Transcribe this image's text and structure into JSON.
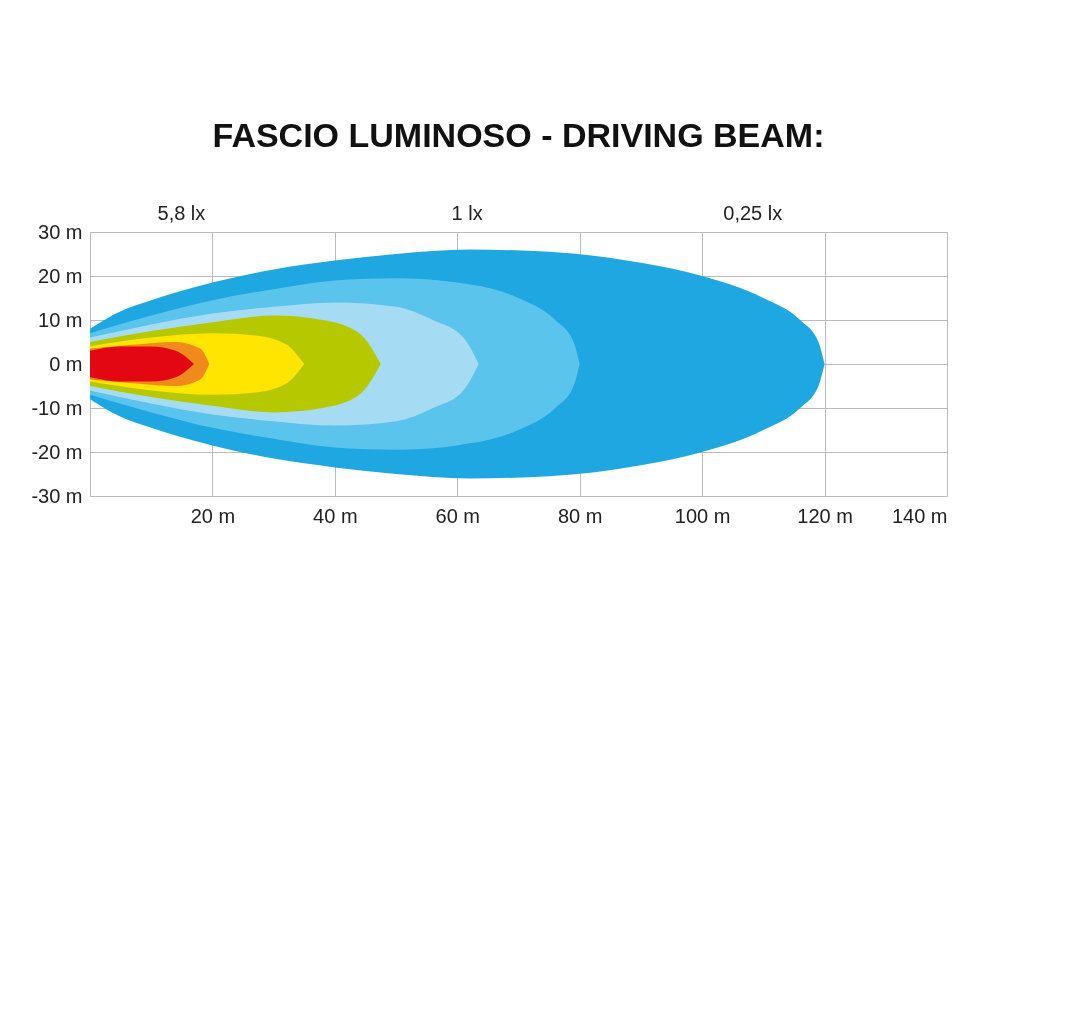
{
  "chart_data": {
    "type": "area",
    "title": "FASCIO LUMINOSO - DRIVING BEAM:",
    "xlim": [
      0,
      140
    ],
    "ylim": [
      -30,
      30
    ],
    "xticks": [
      {
        "value": 0,
        "label": null
      },
      {
        "value": 20,
        "label": "20 m"
      },
      {
        "value": 40,
        "label": "40 m"
      },
      {
        "value": 60,
        "label": "60 m"
      },
      {
        "value": 80,
        "label": "80 m"
      },
      {
        "value": 100,
        "label": "100 m"
      },
      {
        "value": 120,
        "label": "120 m"
      },
      {
        "value": 140,
        "label": "140 m"
      }
    ],
    "yticks": [
      {
        "value": -30,
        "label": "-30 m"
      },
      {
        "value": -20,
        "label": "-20 m"
      },
      {
        "value": -10,
        "label": "-10 m"
      },
      {
        "value": 0,
        "label": "0  m"
      },
      {
        "value": 10,
        "label": "10  m"
      },
      {
        "value": 20,
        "label": "20  m"
      },
      {
        "value": 30,
        "label": "30  m"
      }
    ],
    "grid": true,
    "annotations": [
      "5,8 lx",
      "1 lx",
      "0,25 lx"
    ],
    "series": [
      {
        "color": "#1ea7e0",
        "x": [
          0,
          5,
          10,
          20,
          30,
          40,
          50,
          62,
          75,
          90,
          100,
          110,
          116,
          119,
          120
        ],
        "values": [
          8,
          12,
          14.5,
          18.5,
          21.5,
          23.5,
          25,
          26,
          25.5,
          23,
          20,
          15,
          10,
          5,
          0
        ]
      },
      {
        "color": "#1ea7e0",
        "x": [
          0,
          5,
          10,
          20,
          30,
          40,
          50,
          62,
          75,
          90,
          100,
          110,
          116,
          119,
          120
        ],
        "values": [
          -8,
          -12,
          -14.5,
          -18.5,
          -21.5,
          -23.5,
          -25,
          -26,
          -25.5,
          -23,
          -20,
          -15,
          -10,
          -5,
          0
        ]
      },
      {
        "color": "#5bc4ec",
        "x": [
          0,
          10,
          20,
          30,
          40,
          50,
          60,
          70,
          76,
          79,
          80
        ],
        "values": [
          7,
          11,
          14.5,
          17,
          19,
          19.5,
          18.5,
          15,
          10,
          5,
          0
        ]
      },
      {
        "color": "#5bc4ec",
        "x": [
          0,
          10,
          20,
          30,
          40,
          50,
          60,
          70,
          76,
          79,
          80
        ],
        "values": [
          -7,
          -11,
          -14.5,
          -17,
          -19,
          -19.5,
          -18.5,
          -15,
          -10,
          -5,
          0
        ]
      },
      {
        "color": "#a6dcf3",
        "x": [
          0,
          10,
          20,
          30,
          40,
          50,
          56,
          61,
          63.5
        ],
        "values": [
          6,
          9,
          11.5,
          13,
          14,
          13,
          10,
          6,
          0
        ]
      },
      {
        "color": "#a6dcf3",
        "x": [
          0,
          10,
          20,
          30,
          40,
          50,
          56,
          61,
          63.5
        ],
        "values": [
          -6,
          -9,
          -11.5,
          -13,
          -14,
          -13,
          -10,
          -6,
          0
        ]
      },
      {
        "color": "#b5c800",
        "x": [
          0,
          10,
          20,
          30,
          38,
          44,
          47.5
        ],
        "values": [
          5,
          7.5,
          9.5,
          11,
          10,
          7,
          0
        ]
      },
      {
        "color": "#b5c800",
        "x": [
          0,
          10,
          20,
          30,
          38,
          44,
          47.5
        ],
        "values": [
          -5,
          -7.5,
          -9.5,
          -11,
          -10,
          -7,
          0
        ]
      },
      {
        "color": "#ffe500",
        "x": [
          0,
          10,
          20,
          27,
          32,
          35
        ],
        "values": [
          4,
          6,
          7,
          6.5,
          4.5,
          0
        ]
      },
      {
        "color": "#ffe500",
        "x": [
          0,
          10,
          20,
          27,
          32,
          35
        ],
        "values": [
          -4,
          -6,
          -7,
          -6.5,
          -4.5,
          0
        ]
      },
      {
        "color": "#f08a1c",
        "x": [
          0,
          8,
          14,
          18,
          19.5
        ],
        "values": [
          3.5,
          4.5,
          5,
          3.5,
          0
        ]
      },
      {
        "color": "#f08a1c",
        "x": [
          0,
          8,
          14,
          18,
          19.5
        ],
        "values": [
          -3.5,
          -4.5,
          -5,
          -3.5,
          0
        ]
      },
      {
        "color": "#e30613",
        "x": [
          0,
          5,
          10,
          14,
          17
        ],
        "values": [
          3,
          4,
          4,
          3,
          0
        ]
      },
      {
        "color": "#e30613",
        "x": [
          0,
          5,
          10,
          14,
          17
        ],
        "values": [
          -3,
          -4,
          -4,
          -3,
          0
        ]
      }
    ]
  }
}
